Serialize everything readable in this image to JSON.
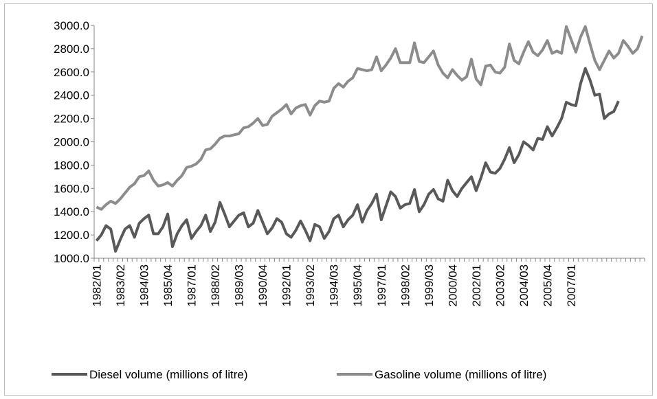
{
  "chart_data": {
    "type": "line",
    "categories": [
      "1982/01",
      null,
      null,
      null,
      null,
      "1983/02",
      null,
      null,
      null,
      null,
      "1984/03",
      null,
      null,
      null,
      null,
      "1985/04",
      null,
      null,
      null,
      null,
      "1987/01",
      null,
      null,
      null,
      null,
      "1988/02",
      null,
      null,
      null,
      null,
      "1989/03",
      null,
      null,
      null,
      null,
      "1990/04",
      null,
      null,
      null,
      null,
      "1992/01",
      null,
      null,
      null,
      null,
      "1993/02",
      null,
      null,
      null,
      null,
      "1994/03",
      null,
      null,
      null,
      null,
      "1995/04",
      null,
      null,
      null,
      null,
      "1997/01",
      null,
      null,
      null,
      null,
      "1998/02",
      null,
      null,
      null,
      null,
      "1999/03",
      null,
      null,
      null,
      null,
      "2000/04",
      null,
      null,
      null,
      null,
      "2002/01",
      null,
      null,
      null,
      null,
      "2003/02",
      null,
      null,
      null,
      null,
      "2004/03",
      null,
      null,
      null,
      null,
      "2005/04",
      null,
      null,
      null,
      null,
      "2007/01",
      null,
      null,
      null,
      null,
      null,
      null,
      null,
      null,
      null,
      null,
      null,
      null,
      null,
      null,
      null
    ],
    "series": [
      {
        "name": "Diesel volume (millions of litre)",
        "color": "#595959",
        "values": [
          1150,
          1200,
          1280,
          1250,
          1060,
          1160,
          1250,
          1280,
          1180,
          1300,
          1340,
          1370,
          1210,
          1210,
          1270,
          1380,
          1100,
          1210,
          1280,
          1330,
          1170,
          1230,
          1280,
          1370,
          1230,
          1310,
          1480,
          1380,
          1270,
          1320,
          1370,
          1390,
          1270,
          1300,
          1410,
          1310,
          1210,
          1260,
          1340,
          1310,
          1210,
          1180,
          1240,
          1320,
          1240,
          1150,
          1290,
          1270,
          1170,
          1230,
          1340,
          1370,
          1270,
          1330,
          1370,
          1460,
          1310,
          1410,
          1470,
          1550,
          1330,
          1450,
          1570,
          1530,
          1430,
          1460,
          1470,
          1590,
          1400,
          1460,
          1550,
          1590,
          1510,
          1490,
          1670,
          1580,
          1530,
          1600,
          1650,
          1700,
          1580,
          1690,
          1820,
          1740,
          1730,
          1770,
          1850,
          1950,
          1820,
          1890,
          2000,
          1970,
          1930,
          2030,
          2020,
          2130,
          2050,
          2120,
          2200,
          2340,
          2320,
          2310,
          2500,
          2630,
          2530,
          2400,
          2410,
          2200,
          2240,
          2260,
          2350,
          null,
          null,
          null,
          null,
          null
        ]
      },
      {
        "name": "Gasoline volume (millions of litre)",
        "color": "#8c8c8c",
        "values": [
          1440,
          1420,
          1460,
          1490,
          1470,
          1510,
          1560,
          1610,
          1640,
          1700,
          1710,
          1750,
          1670,
          1620,
          1630,
          1650,
          1620,
          1670,
          1710,
          1780,
          1790,
          1810,
          1850,
          1930,
          1940,
          1980,
          2030,
          2050,
          2050,
          2060,
          2070,
          2120,
          2130,
          2160,
          2200,
          2140,
          2150,
          2220,
          2250,
          2280,
          2320,
          2240,
          2290,
          2310,
          2320,
          2230,
          2310,
          2350,
          2340,
          2350,
          2460,
          2500,
          2470,
          2520,
          2550,
          2630,
          2620,
          2610,
          2620,
          2730,
          2610,
          2660,
          2720,
          2800,
          2680,
          2680,
          2680,
          2850,
          2690,
          2680,
          2730,
          2780,
          2660,
          2590,
          2550,
          2620,
          2570,
          2530,
          2560,
          2710,
          2540,
          2490,
          2650,
          2660,
          2600,
          2590,
          2640,
          2840,
          2700,
          2670,
          2770,
          2860,
          2770,
          2740,
          2790,
          2870,
          2760,
          2780,
          2760,
          2990,
          2880,
          2770,
          2900,
          2990,
          2840,
          2700,
          2620,
          2700,
          2780,
          2720,
          2760,
          2870,
          2820,
          2760,
          2800,
          2910
        ]
      }
    ],
    "ylim": [
      1000,
      3000
    ],
    "yticks": [
      {
        "value": 1000,
        "label": "1000.0"
      },
      {
        "value": 1200,
        "label": "1200.0"
      },
      {
        "value": 1400,
        "label": "1400.0"
      },
      {
        "value": 1600,
        "label": "1600.0"
      },
      {
        "value": 1800,
        "label": "1800.0"
      },
      {
        "value": 2000,
        "label": "2000.0"
      },
      {
        "value": 2200,
        "label": "2200.0"
      },
      {
        "value": 2400,
        "label": "2400.0"
      },
      {
        "value": 2600,
        "label": "2600.0"
      },
      {
        "value": 2800,
        "label": "2800.0"
      },
      {
        "value": 3000,
        "label": "3000.0"
      }
    ],
    "grid": false,
    "legend": "bottom"
  }
}
